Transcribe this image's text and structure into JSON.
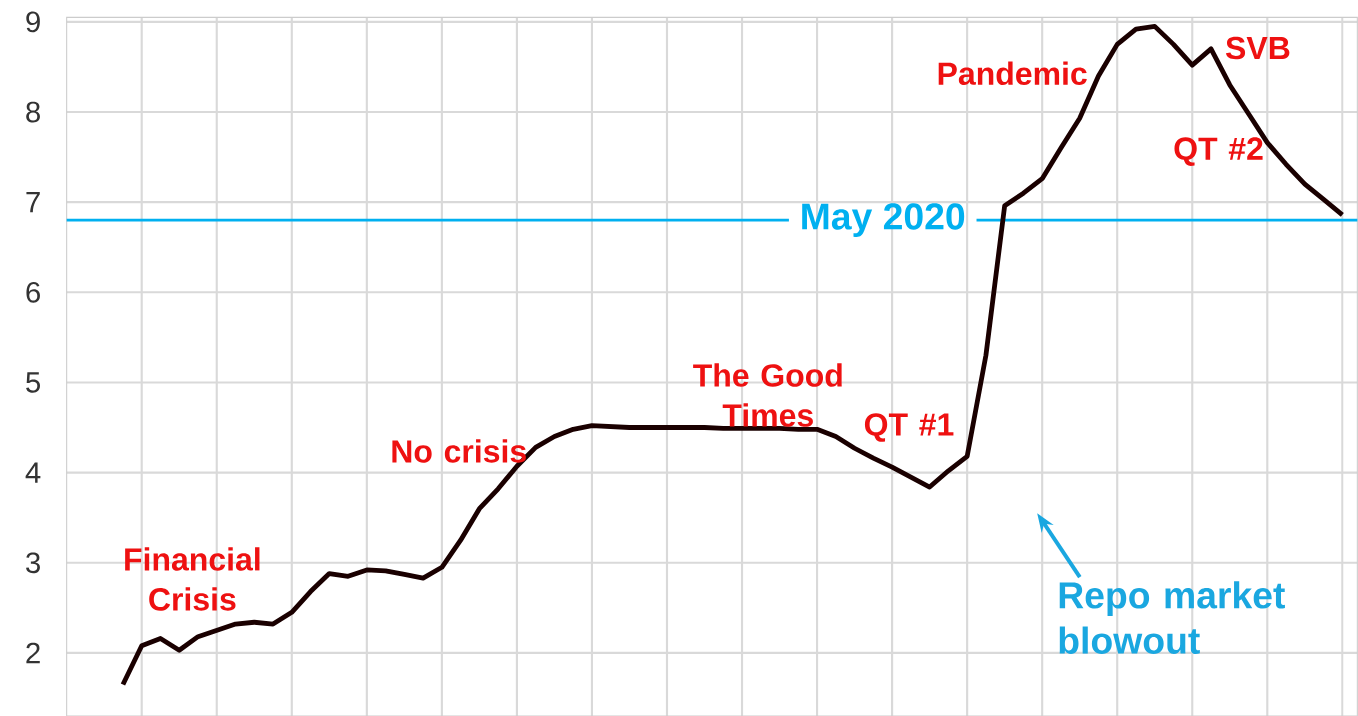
{
  "chart_data": {
    "type": "line",
    "categories": [
      null,
      null,
      null,
      null,
      null,
      null,
      null,
      null,
      null,
      null,
      null,
      null,
      null,
      null,
      null,
      null,
      null,
      null,
      null,
      null,
      null,
      null,
      null,
      null,
      null,
      null,
      null,
      null,
      null,
      null,
      null,
      null,
      null,
      null,
      null,
      null,
      null,
      null,
      null,
      null,
      null,
      null,
      null,
      null,
      null,
      null,
      null,
      null,
      null,
      null,
      null,
      null,
      null,
      null,
      null,
      null,
      null,
      null,
      null,
      null,
      null,
      null,
      null,
      null,
      null,
      null
    ],
    "series": [
      {
        "color": "#1a0000",
        "values": [
          1.65,
          2.08,
          2.16,
          2.03,
          2.18,
          2.25,
          2.32,
          2.34,
          2.32,
          2.45,
          2.68,
          2.88,
          2.85,
          2.92,
          2.91,
          2.87,
          2.83,
          2.95,
          3.25,
          3.6,
          3.82,
          4.07,
          4.28,
          4.4,
          4.48,
          4.52,
          4.51,
          4.5,
          4.5,
          4.5,
          4.5,
          4.5,
          4.49,
          4.49,
          4.49,
          4.49,
          4.48,
          4.48,
          4.4,
          4.27,
          4.16,
          4.06,
          3.95,
          3.84,
          4.02,
          4.18,
          5.3,
          6.96,
          7.1,
          7.26,
          7.6,
          7.93,
          8.4,
          8.75,
          8.92,
          8.95,
          8.75,
          8.52,
          8.7,
          8.3,
          7.98,
          7.66,
          7.42,
          7.2,
          7.03,
          6.86
        ]
      }
    ],
    "ylim": [
      1.3,
      9.05
    ],
    "yticks": [
      2,
      3,
      4,
      5,
      6,
      7,
      8,
      9
    ],
    "grid": true,
    "marker": "none",
    "line_style": "solid",
    "ref_lines": [
      {
        "axis": "y",
        "value": 6.8,
        "label": "May 2020",
        "color": "#00b0f0"
      }
    ],
    "annotations": [
      "Financial Crisis",
      "No crisis",
      "The Good Times",
      "QT #1",
      "Pandemic",
      "SVB",
      "QT #2",
      "Repo market blowout"
    ]
  }
}
